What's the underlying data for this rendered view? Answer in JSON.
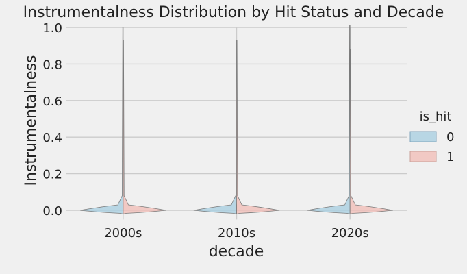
{
  "chart_data": {
    "type": "violin",
    "title": "Instrumentalness Distribution by Hit Status and Decade",
    "xlabel": "decade",
    "ylabel": "Instrumentalness",
    "categories": [
      "2000s",
      "2010s",
      "2020s"
    ],
    "ylim": [
      -0.05,
      1.02
    ],
    "yticks": [
      "0.0",
      "0.2",
      "0.4",
      "0.6",
      "0.8",
      "1.0"
    ],
    "grid": true,
    "legend": {
      "title": "is_hit",
      "placement": "right",
      "entries": [
        "0",
        "1"
      ]
    },
    "series": [
      {
        "name": "0",
        "color": "#a6cde0",
        "side": "left",
        "max_by_category": [
          1.0,
          0.0,
          1.01
        ]
      },
      {
        "name": "1",
        "color": "#f2bcb6",
        "side": "right",
        "max_by_category": [
          0.93,
          0.93,
          0.88
        ]
      }
    ]
  },
  "colors": {
    "background": "#f0f0f0",
    "grid": "#cbcbcb",
    "violin_stroke": "#7a7a7a",
    "text": "#222222"
  }
}
